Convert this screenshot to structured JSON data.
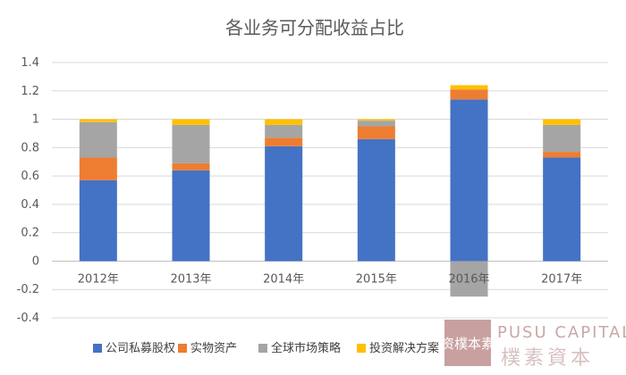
{
  "chart_data": {
    "type": "bar",
    "stacked": true,
    "title": "各业务可分配收益占比",
    "categories": [
      "2012年",
      "2013年",
      "2014年",
      "2015年",
      "2016年",
      "2017年"
    ],
    "series": [
      {
        "name": "公司私募股权",
        "color": "#4472C4",
        "values": [
          0.57,
          0.64,
          0.81,
          0.86,
          1.14,
          0.73
        ]
      },
      {
        "name": "实物资产",
        "color": "#ED7D31",
        "values": [
          0.16,
          0.05,
          0.06,
          0.09,
          0.07,
          0.04
        ]
      },
      {
        "name": "全球市场策略",
        "color": "#A5A5A5",
        "values": [
          0.25,
          0.27,
          0.09,
          0.04,
          -0.25,
          0.19
        ]
      },
      {
        "name": "投资解决方案",
        "color": "#FFC000",
        "values": [
          0.02,
          0.04,
          0.04,
          0.01,
          0.03,
          0.04
        ]
      }
    ],
    "ylim": [
      -0.4,
      1.4
    ],
    "yticks": [
      "1.4",
      "1.2",
      "1",
      "0.8",
      "0.6",
      "0.4",
      "0.2",
      "0",
      "-0.2",
      "-0.4"
    ],
    "ytick_values": [
      1.4,
      1.2,
      1.0,
      0.8,
      0.6,
      0.4,
      0.2,
      0,
      -0.2,
      -0.4
    ],
    "grid": true,
    "legend_position": "bottom"
  },
  "watermark": {
    "english": "PUSU CAPITAL",
    "chinese": "樸素資本",
    "seal": "资樸本素"
  }
}
